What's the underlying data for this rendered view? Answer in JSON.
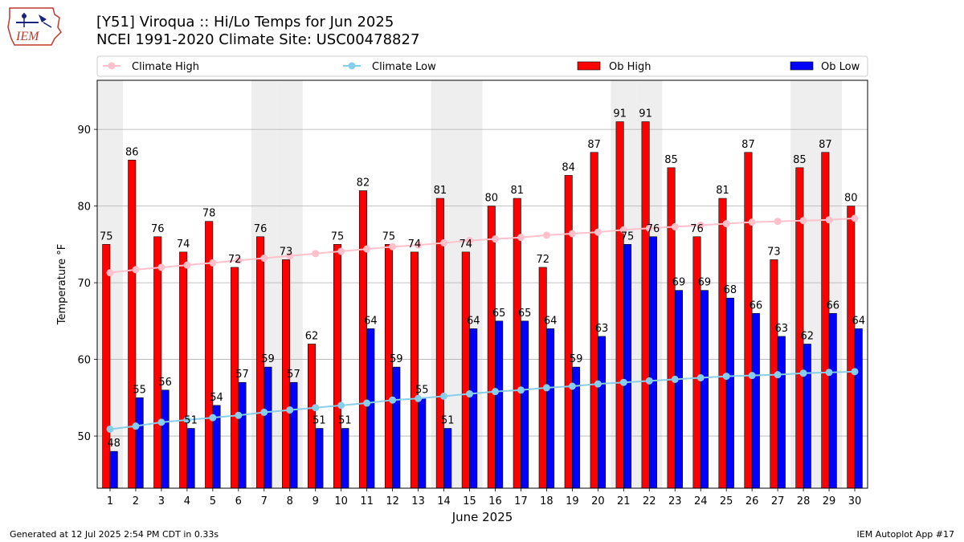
{
  "header": {
    "title_line1": "[Y51] Viroqua :: Hi/Lo Temps for Jun 2025",
    "title_line2": "NCEI 1991-2020 Climate Site: USC00478827",
    "logo_text": "IEM"
  },
  "footer": {
    "generated": "Generated at 12 Jul 2025 2:54 PM CDT in 0.33s",
    "app": "IEM Autoplot App #17"
  },
  "chart_data": {
    "type": "bar",
    "xlabel": "June 2025",
    "ylabel": "Temperature °F",
    "ylim": [
      43.2,
      96.4
    ],
    "yticks": [
      50,
      60,
      70,
      80,
      90
    ],
    "grid": true,
    "legend_position": "top",
    "categories": [
      "1",
      "2",
      "3",
      "4",
      "5",
      "6",
      "7",
      "8",
      "9",
      "10",
      "11",
      "12",
      "13",
      "14",
      "15",
      "16",
      "17",
      "18",
      "19",
      "20",
      "21",
      "22",
      "23",
      "24",
      "25",
      "26",
      "27",
      "28",
      "29",
      "30"
    ],
    "weekend_days": [
      1,
      7,
      8,
      14,
      15,
      21,
      22,
      28,
      29
    ],
    "series": [
      {
        "name": "Climate High",
        "kind": "line",
        "color": "#ffc0cb",
        "values": [
          71.3,
          71.7,
          72.0,
          72.3,
          72.6,
          72.9,
          73.2,
          73.5,
          73.8,
          74.1,
          74.4,
          74.7,
          74.9,
          75.2,
          75.5,
          75.7,
          75.9,
          76.2,
          76.4,
          76.6,
          76.9,
          77.1,
          77.3,
          77.5,
          77.7,
          77.9,
          78.0,
          78.1,
          78.2,
          78.4
        ]
      },
      {
        "name": "Climate Low",
        "kind": "line",
        "color": "#87ceeb",
        "values": [
          50.9,
          51.3,
          51.8,
          52.1,
          52.4,
          52.7,
          53.1,
          53.4,
          53.7,
          54.0,
          54.3,
          54.7,
          54.9,
          55.2,
          55.5,
          55.8,
          56.0,
          56.3,
          56.5,
          56.8,
          57.0,
          57.2,
          57.4,
          57.6,
          57.8,
          57.9,
          58.0,
          58.2,
          58.3,
          58.4
        ]
      },
      {
        "name": "Ob High",
        "kind": "bar",
        "color": "#ff0000",
        "values": [
          75,
          86,
          76,
          74,
          78,
          72,
          76,
          73,
          62,
          75,
          82,
          75,
          74,
          81,
          74,
          80,
          81,
          72,
          84,
          87,
          91,
          91,
          85,
          76,
          81,
          87,
          73,
          85,
          87,
          80
        ],
        "labels": [
          "75",
          "86",
          "76",
          "74",
          "78",
          "72",
          "76",
          "73",
          "62",
          "75",
          "82",
          "75",
          "74",
          "81",
          "74",
          "80",
          "81",
          "72",
          "84",
          "87",
          "91",
          "91",
          "85",
          "76",
          "81",
          "87",
          "73",
          "85",
          "87",
          "80"
        ]
      },
      {
        "name": "Ob Low",
        "kind": "bar",
        "color": "#0000ff",
        "values": [
          48,
          55,
          56,
          51,
          54,
          57,
          59,
          57,
          51,
          51,
          64,
          59,
          55,
          51,
          64,
          65,
          65,
          64,
          59,
          63,
          75,
          76,
          69,
          69,
          68,
          66,
          63,
          62,
          66,
          64
        ],
        "labels": [
          "48",
          "55",
          "56",
          "51",
          "54",
          "57",
          "59",
          "57",
          "51",
          "51",
          "64",
          "59",
          "55",
          "51",
          "64",
          "65",
          "65",
          "64",
          "59",
          "63",
          "75",
          "76",
          "69",
          "69",
          "68",
          "66",
          "63",
          "62",
          "66",
          "64"
        ]
      }
    ]
  }
}
